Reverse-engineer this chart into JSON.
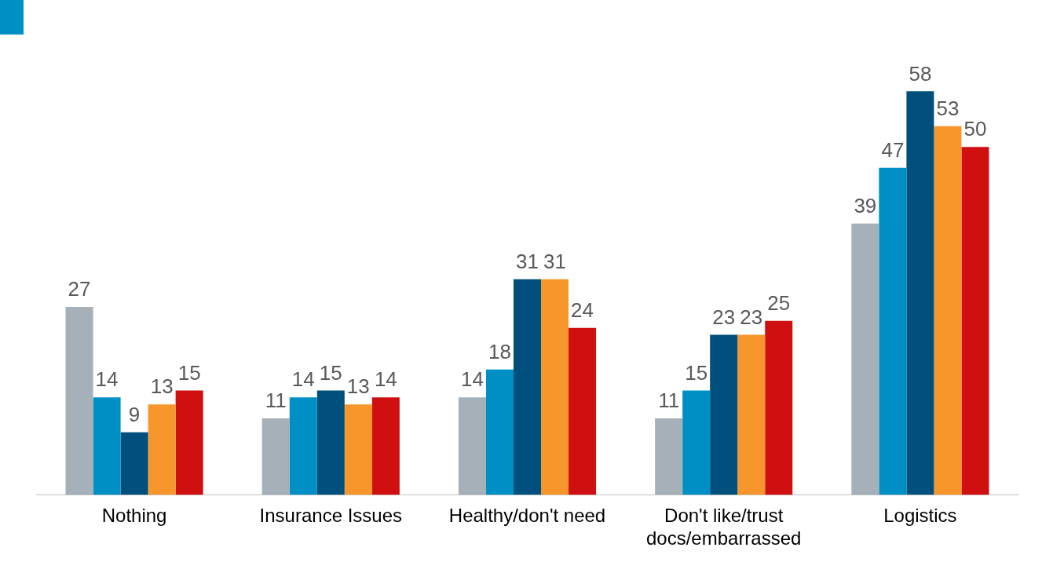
{
  "chart_data": {
    "type": "bar",
    "categories": [
      "Nothing",
      "Insurance Issues",
      "Healthy/don't need",
      "Don't like/trust docs/embarrassed",
      "Logistics"
    ],
    "series": [
      {
        "color": "#a5b0b8",
        "values": [
          27,
          11,
          14,
          11,
          39
        ]
      },
      {
        "color": "#008fc5",
        "values": [
          14,
          14,
          18,
          15,
          47
        ]
      },
      {
        "color": "#004f7c",
        "values": [
          9,
          15,
          31,
          23,
          58
        ]
      },
      {
        "color": "#f7962a",
        "values": [
          13,
          13,
          31,
          23,
          53
        ]
      },
      {
        "color": "#d01010",
        "values": [
          15,
          14,
          24,
          25,
          50
        ]
      }
    ],
    "relative": false,
    "data_labels": true,
    "grid": false,
    "legend": false
  }
}
